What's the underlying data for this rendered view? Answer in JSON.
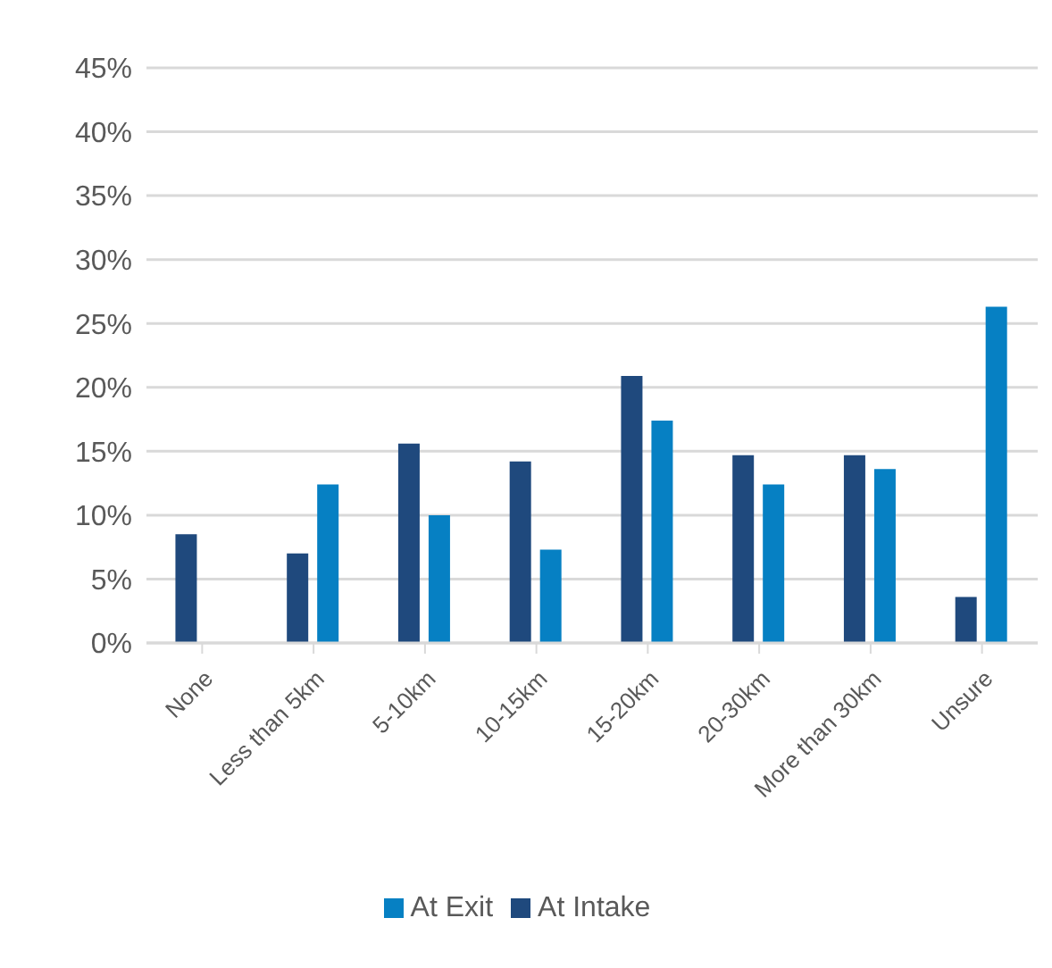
{
  "chart_data": {
    "type": "bar",
    "categories": [
      "None",
      "Less than 5km",
      "5-10km",
      "10-15km",
      "15-20km",
      "20-30km",
      "More than 30km",
      "Unsure"
    ],
    "series": [
      {
        "name": "At Intake",
        "color": "#1f497d",
        "values": [
          8.5,
          7.0,
          15.6,
          14.2,
          20.9,
          14.7,
          14.7,
          3.6
        ]
      },
      {
        "name": "At Exit",
        "color": "#0680c3",
        "values": [
          0,
          12.4,
          10.0,
          7.3,
          17.4,
          12.4,
          13.6,
          26.3
        ]
      }
    ],
    "ylim": [
      0,
      45
    ],
    "yticks": [
      {
        "value": 0,
        "label": "0%"
      },
      {
        "value": 5,
        "label": "5%"
      },
      {
        "value": 10,
        "label": "10%"
      },
      {
        "value": 15,
        "label": "15%"
      },
      {
        "value": 20,
        "label": "20%"
      },
      {
        "value": 25,
        "label": "25%"
      },
      {
        "value": 30,
        "label": "30%"
      },
      {
        "value": 35,
        "label": "35%"
      },
      {
        "value": 40,
        "label": "40%"
      },
      {
        "value": 45,
        "label": "45%"
      }
    ],
    "grid": "y",
    "legend": "bottom"
  }
}
